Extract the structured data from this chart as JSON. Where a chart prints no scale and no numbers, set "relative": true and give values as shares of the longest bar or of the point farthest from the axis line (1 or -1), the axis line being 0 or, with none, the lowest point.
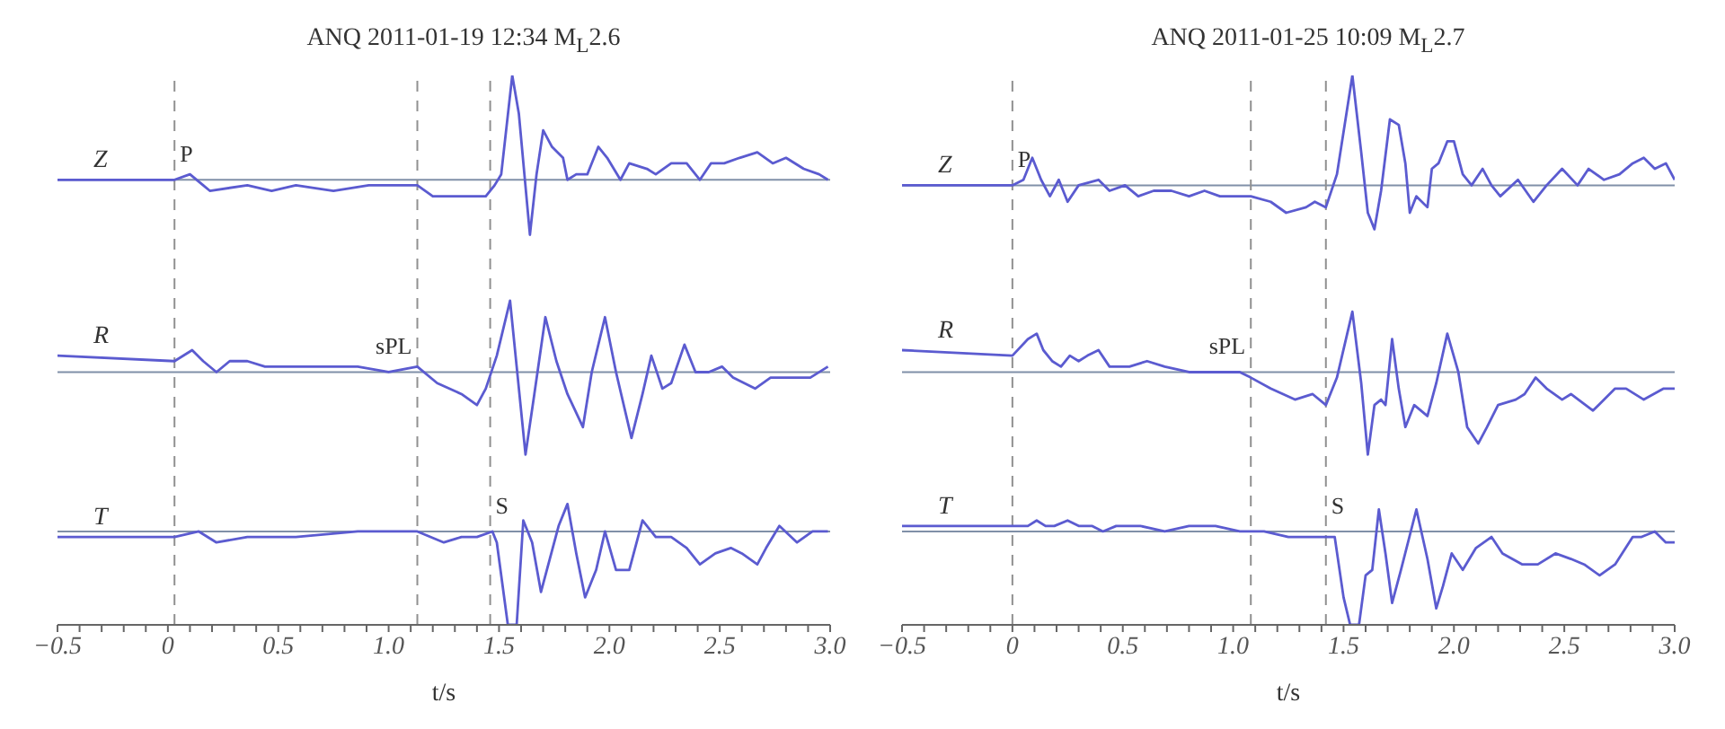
{
  "chart_data": [
    {
      "type": "line",
      "title": "ANQ 2011-01-19 12:34 M$_{L}$2.6",
      "xlabel": "t/s",
      "relative": true,
      "xlim": [
        -0.5,
        3.0
      ],
      "xticks": [
        -0.5,
        {
          "value": -0.4,
          "label": null
        },
        {
          "value": -0.3,
          "label": null
        },
        {
          "value": -0.2,
          "label": null
        },
        {
          "value": -0.1,
          "label": null
        },
        0,
        {
          "value": 0.1,
          "label": null
        },
        {
          "value": 0.2,
          "label": null
        },
        {
          "value": 0.3,
          "label": null
        },
        {
          "value": 0.4,
          "label": null
        },
        0.5,
        {
          "value": 0.6,
          "label": null
        },
        {
          "value": 0.7,
          "label": null
        },
        {
          "value": 0.8,
          "label": null
        },
        {
          "value": 0.9,
          "label": null
        },
        {
          "value": 1.0,
          "label": "1.0"
        },
        {
          "value": 1.1,
          "label": null
        },
        {
          "value": 1.2,
          "label": null
        },
        {
          "value": 1.3,
          "label": null
        },
        {
          "value": 1.4,
          "label": null
        },
        1.5,
        {
          "value": 1.6,
          "label": null
        },
        {
          "value": 1.7,
          "label": null
        },
        {
          "value": 1.8,
          "label": null
        },
        {
          "value": 1.9,
          "label": null
        },
        {
          "value": 2.0,
          "label": "2.0"
        },
        {
          "value": 2.1,
          "label": null
        },
        {
          "value": 2.2,
          "label": null
        },
        {
          "value": 2.3,
          "label": null
        },
        {
          "value": 2.4,
          "label": null
        },
        2.5,
        {
          "value": 2.6,
          "label": null
        },
        {
          "value": 2.7,
          "label": null
        },
        {
          "value": 2.8,
          "label": null
        },
        {
          "value": 2.9,
          "label": null
        },
        {
          "value": 3.0,
          "label": "3.0"
        }
      ],
      "grid": false,
      "marker": "none",
      "series": [
        {
          "name": "Z",
          "color": "#5b5bd0",
          "x": [
            -0.5,
            0.03,
            0.1,
            0.16,
            0.19,
            0.36,
            0.47,
            0.58,
            0.75,
            0.91,
            1.13,
            1.2,
            1.44,
            1.48,
            1.51,
            1.56,
            1.59,
            1.64,
            1.67,
            1.7,
            1.74,
            1.79,
            1.81,
            1.85,
            1.9,
            1.95,
            1.99,
            2.05,
            2.09,
            2.17,
            2.21,
            2.28,
            2.35,
            2.41,
            2.46,
            2.52,
            2.59,
            2.67,
            2.74,
            2.8,
            2.88,
            2.95,
            2.99
          ],
          "values": [
            0.81,
            0.81,
            0.82,
            0.8,
            0.79,
            0.8,
            0.79,
            0.8,
            0.79,
            0.8,
            0.8,
            0.78,
            0.78,
            0.8,
            0.82,
            1.0,
            0.93,
            0.71,
            0.82,
            0.9,
            0.87,
            0.85,
            0.81,
            0.82,
            0.82,
            0.87,
            0.85,
            0.81,
            0.84,
            0.83,
            0.82,
            0.84,
            0.84,
            0.81,
            0.84,
            0.84,
            0.85,
            0.86,
            0.84,
            0.85,
            0.83,
            0.82,
            0.81
          ]
        },
        {
          "name": "R",
          "color": "#5b5bd0",
          "x": [
            -0.5,
            0.03,
            0.11,
            0.16,
            0.22,
            0.28,
            0.36,
            0.44,
            0.52,
            0.64,
            0.86,
            1.0,
            1.13,
            1.22,
            1.33,
            1.4,
            1.44,
            1.49,
            1.55,
            1.58,
            1.62,
            1.66,
            1.71,
            1.76,
            1.81,
            1.88,
            1.92,
            1.98,
            2.03,
            2.1,
            2.15,
            2.19,
            2.24,
            2.28,
            2.34,
            2.39,
            2.45,
            2.51,
            2.56,
            2.66,
            2.73,
            2.91,
            2.99
          ],
          "values": [
            0.49,
            0.48,
            0.5,
            0.48,
            0.46,
            0.48,
            0.48,
            0.47,
            0.47,
            0.47,
            0.47,
            0.46,
            0.47,
            0.44,
            0.42,
            0.4,
            0.43,
            0.49,
            0.59,
            0.47,
            0.31,
            0.42,
            0.56,
            0.48,
            0.42,
            0.36,
            0.46,
            0.56,
            0.46,
            0.34,
            0.42,
            0.49,
            0.43,
            0.44,
            0.51,
            0.46,
            0.46,
            0.47,
            0.45,
            0.43,
            0.45,
            0.45,
            0.47
          ]
        },
        {
          "name": "T",
          "color": "#5b5bd0",
          "x": [
            -0.5,
            0.03,
            0.14,
            0.22,
            0.36,
            0.58,
            0.86,
            1.13,
            1.25,
            1.33,
            1.4,
            1.47,
            1.49,
            1.54,
            1.58,
            1.61,
            1.65,
            1.69,
            1.73,
            1.77,
            1.81,
            1.85,
            1.89,
            1.94,
            1.98,
            2.03,
            2.09,
            2.15,
            2.21,
            2.28,
            2.35,
            2.41,
            2.48,
            2.55,
            2.6,
            2.67,
            2.71,
            2.77,
            2.85,
            2.92,
            2.99
          ],
          "values": [
            0.16,
            0.16,
            0.17,
            0.15,
            0.16,
            0.16,
            0.17,
            0.17,
            0.15,
            0.16,
            0.16,
            0.17,
            0.15,
            0.0,
            0.0,
            0.19,
            0.15,
            0.06,
            0.12,
            0.18,
            0.22,
            0.13,
            0.05,
            0.1,
            0.17,
            0.1,
            0.1,
            0.19,
            0.16,
            0.16,
            0.14,
            0.11,
            0.13,
            0.14,
            0.13,
            0.11,
            0.14,
            0.18,
            0.15,
            0.17,
            0.17
          ]
        }
      ],
      "ref_lines": [
        {
          "axis": "y",
          "value": 0.81,
          "color": "#8090a8",
          "line_style": "solid"
        },
        {
          "axis": "y",
          "value": 0.46,
          "color": "#8090a8",
          "line_style": "solid"
        },
        {
          "axis": "y",
          "value": 0.17,
          "color": "#8090a8",
          "line_style": "solid"
        },
        {
          "axis": "x",
          "value": 0.03,
          "color": "#909090",
          "line_style": "dashed",
          "label": "P"
        },
        {
          "axis": "x",
          "value": 1.13,
          "color": "#909090",
          "line_style": "dashed",
          "label": "sPL"
        },
        {
          "axis": "x",
          "value": 1.46,
          "color": "#909090",
          "line_style": "dashed",
          "label": "S"
        }
      ]
    },
    {
      "type": "line",
      "title": "ANQ 2011-01-25 10:09 M$_{L}$2.7",
      "xlabel": "t/s",
      "relative": true,
      "xlim": [
        -0.5,
        3.0
      ],
      "xticks": [
        -0.5,
        {
          "value": -0.4,
          "label": null
        },
        {
          "value": -0.3,
          "label": null
        },
        {
          "value": -0.2,
          "label": null
        },
        {
          "value": -0.1,
          "label": null
        },
        0,
        {
          "value": 0.1,
          "label": null
        },
        {
          "value": 0.2,
          "label": null
        },
        {
          "value": 0.3,
          "label": null
        },
        {
          "value": 0.4,
          "label": null
        },
        0.5,
        {
          "value": 0.6,
          "label": null
        },
        {
          "value": 0.7,
          "label": null
        },
        {
          "value": 0.8,
          "label": null
        },
        {
          "value": 0.9,
          "label": null
        },
        {
          "value": 1.0,
          "label": "1.0"
        },
        {
          "value": 1.1,
          "label": null
        },
        {
          "value": 1.2,
          "label": null
        },
        {
          "value": 1.3,
          "label": null
        },
        {
          "value": 1.4,
          "label": null
        },
        1.5,
        {
          "value": 1.6,
          "label": null
        },
        {
          "value": 1.7,
          "label": null
        },
        {
          "value": 1.8,
          "label": null
        },
        {
          "value": 1.9,
          "label": null
        },
        {
          "value": 2.0,
          "label": "2.0"
        },
        {
          "value": 2.1,
          "label": null
        },
        {
          "value": 2.2,
          "label": null
        },
        {
          "value": 2.3,
          "label": null
        },
        {
          "value": 2.4,
          "label": null
        },
        2.5,
        {
          "value": 2.6,
          "label": null
        },
        {
          "value": 2.7,
          "label": null
        },
        {
          "value": 2.8,
          "label": null
        },
        {
          "value": 2.9,
          "label": null
        },
        {
          "value": 3.0,
          "label": "3.0"
        }
      ],
      "grid": false,
      "marker": "none",
      "series": [
        {
          "name": "Z",
          "color": "#5b5bd0",
          "x": [
            -0.5,
            0.0,
            0.05,
            0.09,
            0.13,
            0.17,
            0.21,
            0.25,
            0.3,
            0.39,
            0.44,
            0.51,
            0.57,
            0.64,
            0.72,
            0.8,
            0.87,
            0.94,
            1.08,
            1.17,
            1.24,
            1.33,
            1.37,
            1.42,
            1.47,
            1.54,
            1.58,
            1.61,
            1.64,
            1.67,
            1.71,
            1.75,
            1.78,
            1.8,
            1.83,
            1.88,
            1.9,
            1.93,
            1.97,
            2.0,
            2.04,
            2.08,
            2.13,
            2.17,
            2.21,
            2.29,
            2.36,
            2.42,
            2.49,
            2.56,
            2.61,
            2.68,
            2.75,
            2.81,
            2.86,
            2.91,
            2.96,
            3.0
          ],
          "values": [
            0.8,
            0.8,
            0.81,
            0.85,
            0.81,
            0.78,
            0.81,
            0.77,
            0.8,
            0.81,
            0.79,
            0.8,
            0.78,
            0.79,
            0.79,
            0.78,
            0.79,
            0.78,
            0.78,
            0.77,
            0.75,
            0.76,
            0.77,
            0.76,
            0.82,
            1.0,
            0.86,
            0.75,
            0.72,
            0.79,
            0.92,
            0.91,
            0.84,
            0.75,
            0.78,
            0.76,
            0.83,
            0.84,
            0.88,
            0.88,
            0.82,
            0.8,
            0.83,
            0.8,
            0.78,
            0.81,
            0.77,
            0.8,
            0.83,
            0.8,
            0.83,
            0.81,
            0.82,
            0.84,
            0.85,
            0.83,
            0.84,
            0.81
          ]
        },
        {
          "name": "R",
          "color": "#5b5bd0",
          "x": [
            -0.5,
            0.0,
            0.07,
            0.11,
            0.14,
            0.18,
            0.22,
            0.26,
            0.3,
            0.34,
            0.39,
            0.44,
            0.53,
            0.61,
            0.69,
            0.8,
            0.92,
            1.03,
            1.08,
            1.17,
            1.28,
            1.36,
            1.42,
            1.47,
            1.54,
            1.58,
            1.61,
            1.64,
            1.67,
            1.69,
            1.72,
            1.75,
            1.78,
            1.82,
            1.88,
            1.92,
            1.97,
            2.02,
            2.06,
            2.11,
            2.15,
            2.2,
            2.28,
            2.32,
            2.37,
            2.42,
            2.49,
            2.53,
            2.63,
            2.73,
            2.78,
            2.86,
            2.95,
            3.0
          ],
          "values": [
            0.5,
            0.49,
            0.52,
            0.53,
            0.5,
            0.48,
            0.47,
            0.49,
            0.48,
            0.49,
            0.5,
            0.47,
            0.47,
            0.48,
            0.47,
            0.46,
            0.46,
            0.46,
            0.45,
            0.43,
            0.41,
            0.42,
            0.4,
            0.45,
            0.57,
            0.44,
            0.31,
            0.4,
            0.41,
            0.4,
            0.52,
            0.43,
            0.36,
            0.4,
            0.38,
            0.44,
            0.53,
            0.46,
            0.36,
            0.33,
            0.36,
            0.4,
            0.41,
            0.42,
            0.45,
            0.43,
            0.41,
            0.42,
            0.39,
            0.43,
            0.43,
            0.41,
            0.43,
            0.43
          ]
        },
        {
          "name": "T",
          "color": "#5b5bd0",
          "x": [
            -0.5,
            0.0,
            0.07,
            0.11,
            0.15,
            0.19,
            0.25,
            0.3,
            0.36,
            0.41,
            0.47,
            0.58,
            0.69,
            0.8,
            0.92,
            1.03,
            1.14,
            1.25,
            1.33,
            1.42,
            1.46,
            1.5,
            1.53,
            1.57,
            1.6,
            1.63,
            1.66,
            1.69,
            1.72,
            1.76,
            1.83,
            1.88,
            1.92,
            1.95,
            1.99,
            2.04,
            2.1,
            2.17,
            2.22,
            2.31,
            2.38,
            2.46,
            2.53,
            2.59,
            2.66,
            2.73,
            2.81,
            2.85,
            2.91,
            2.96,
            3.0
          ],
          "values": [
            0.18,
            0.18,
            0.18,
            0.19,
            0.18,
            0.18,
            0.19,
            0.18,
            0.18,
            0.17,
            0.18,
            0.18,
            0.17,
            0.18,
            0.18,
            0.17,
            0.17,
            0.16,
            0.16,
            0.16,
            0.16,
            0.05,
            0.0,
            0.0,
            0.09,
            0.1,
            0.21,
            0.13,
            0.04,
            0.1,
            0.21,
            0.12,
            0.03,
            0.07,
            0.13,
            0.1,
            0.14,
            0.16,
            0.13,
            0.11,
            0.11,
            0.13,
            0.12,
            0.11,
            0.09,
            0.11,
            0.16,
            0.16,
            0.17,
            0.15,
            0.15
          ]
        }
      ],
      "ref_lines": [
        {
          "axis": "y",
          "value": 0.8,
          "color": "#8090a8",
          "line_style": "solid"
        },
        {
          "axis": "y",
          "value": 0.46,
          "color": "#8090a8",
          "line_style": "solid"
        },
        {
          "axis": "y",
          "value": 0.17,
          "color": "#8090a8",
          "line_style": "solid"
        },
        {
          "axis": "x",
          "value": 0.0,
          "color": "#909090",
          "line_style": "dashed",
          "label": "P"
        },
        {
          "axis": "x",
          "value": 1.08,
          "color": "#909090",
          "line_style": "dashed",
          "label": "sPL"
        },
        {
          "axis": "x",
          "value": 1.42,
          "color": "#909090",
          "line_style": "dashed",
          "label": "S"
        }
      ]
    }
  ]
}
